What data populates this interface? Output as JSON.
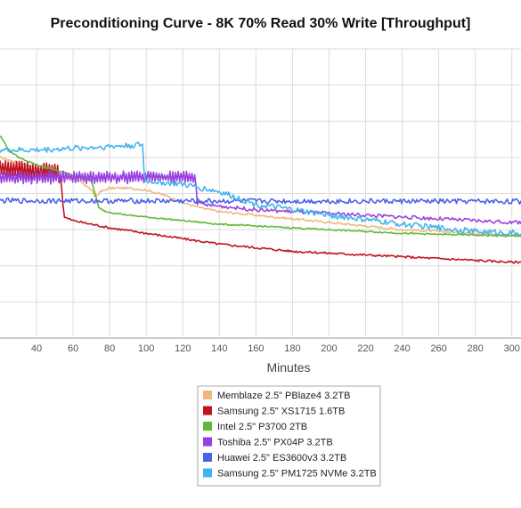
{
  "chart_data": {
    "type": "line",
    "title": "Preconditioning Curve - 8K 70% Read 30% Write [Throughput]",
    "xlabel": "Minutes",
    "ylabel": "",
    "xlim": [
      20,
      305
    ],
    "ylim": [
      0,
      8
    ],
    "x_ticks": [
      40,
      60,
      80,
      100,
      120,
      140,
      160,
      180,
      200,
      220,
      240,
      260,
      280,
      300
    ],
    "grid": true,
    "legend_position": "bottom-center",
    "series": [
      {
        "name": "Memblaze 2.5\" PBlaze4 3.2TB",
        "color": "#f0b880",
        "x": [
          20,
          30,
          40,
          50,
          55,
          60,
          65,
          70,
          72,
          75,
          80,
          90,
          100,
          110,
          120,
          130,
          140,
          160,
          180,
          200,
          220,
          240,
          260,
          280,
          300,
          305
        ],
        "y": [
          5.0,
          4.85,
          4.7,
          4.6,
          4.5,
          4.4,
          4.3,
          4.1,
          3.9,
          4.05,
          4.15,
          4.15,
          4.1,
          3.95,
          3.75,
          3.6,
          3.5,
          3.4,
          3.3,
          3.2,
          3.1,
          3.0,
          2.95,
          2.9,
          2.85,
          2.85
        ],
        "noise": 0.03
      },
      {
        "name": "Samsung 2.5\" XS1715 1.6TB",
        "color": "#c0141e",
        "x": [
          20,
          30,
          40,
          50,
          53,
          54,
          55,
          60,
          70,
          80,
          100,
          120,
          140,
          160,
          180,
          200,
          220,
          240,
          260,
          280,
          300,
          305
        ],
        "y": [
          4.7,
          4.65,
          4.6,
          4.6,
          4.5,
          4.0,
          3.35,
          3.25,
          3.15,
          3.05,
          2.9,
          2.75,
          2.6,
          2.5,
          2.4,
          2.35,
          2.3,
          2.25,
          2.2,
          2.15,
          2.1,
          2.1
        ],
        "noise": 0.03,
        "osc_until": 53,
        "osc_amp": 0.25
      },
      {
        "name": "Intel 2.5\" P3700 2TB",
        "color": "#5fb93a",
        "x": [
          20,
          25,
          30,
          40,
          50,
          60,
          70,
          72,
          74,
          78,
          90,
          100,
          120,
          140,
          160,
          180,
          200,
          220,
          240,
          260,
          280,
          300,
          305
        ],
        "y": [
          5.6,
          5.2,
          5.0,
          4.8,
          4.65,
          4.5,
          4.35,
          4.0,
          3.6,
          3.5,
          3.4,
          3.35,
          3.25,
          3.15,
          3.1,
          3.05,
          3.0,
          2.95,
          2.9,
          2.87,
          2.85,
          2.82,
          2.82
        ],
        "noise": 0.02
      },
      {
        "name": "Toshiba 2.5\" PX04P 3.2TB",
        "color": "#9a40e0",
        "x": [
          20,
          40,
          60,
          80,
          100,
          110,
          120,
          127,
          128,
          130,
          140,
          160,
          180,
          200,
          220,
          240,
          260,
          280,
          300,
          305
        ],
        "y": [
          4.45,
          4.45,
          4.45,
          4.45,
          4.45,
          4.45,
          4.45,
          4.4,
          3.75,
          3.7,
          3.65,
          3.55,
          3.5,
          3.45,
          3.4,
          3.35,
          3.3,
          3.25,
          3.2,
          3.2
        ],
        "noise": 0.05,
        "osc_until": 127,
        "osc_amp": 0.15
      },
      {
        "name": "Huawei 2.5\" ES3600v3 3.2TB",
        "color": "#4a62e8",
        "x": [
          20,
          305
        ],
        "y": [
          3.8,
          3.78
        ],
        "noise": 0.07
      },
      {
        "name": "Samsung 2.5\" PM1725 NVMe 3.2TB",
        "color": "#42b4ec",
        "x": [
          20,
          40,
          60,
          80,
          98,
          99,
          100,
          120,
          140,
          160,
          200,
          240,
          280,
          305
        ],
        "y": [
          5.2,
          5.2,
          5.25,
          5.3,
          5.35,
          4.4,
          4.35,
          4.25,
          4.05,
          3.7,
          3.4,
          3.15,
          2.95,
          2.9
        ],
        "noise": 0.08
      }
    ]
  }
}
